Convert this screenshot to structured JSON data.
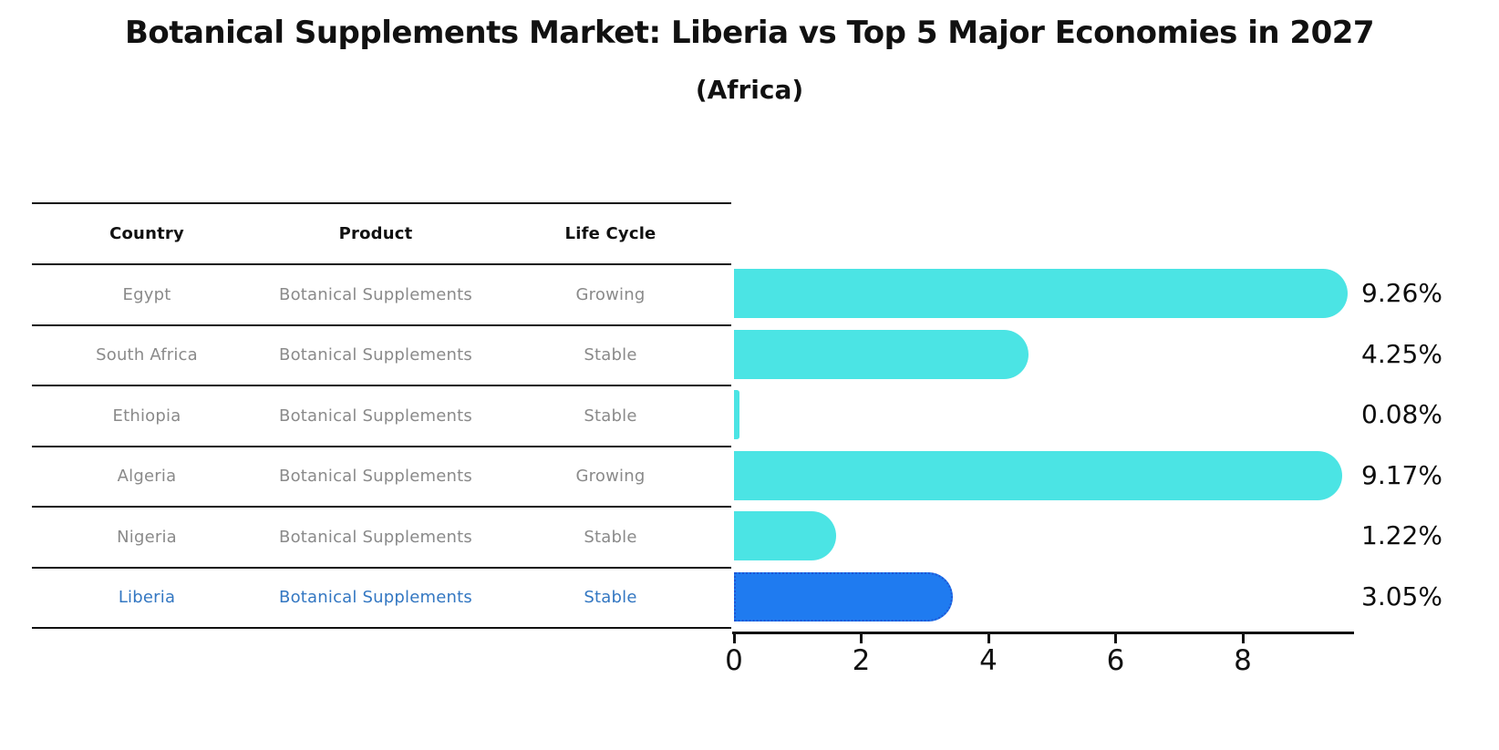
{
  "title": "Botanical Supplements Market: Liberia vs Top 5 Major Economies in 2027",
  "subtitle": "(Africa)",
  "table": {
    "columns": [
      "Country",
      "Product",
      "Life Cycle"
    ],
    "rows": [
      {
        "country": "Egypt",
        "product": "Botanical Supplements",
        "life_cycle": "Growing",
        "highlight": false
      },
      {
        "country": "South Africa",
        "product": "Botanical Supplements",
        "life_cycle": "Stable",
        "highlight": false
      },
      {
        "country": "Ethiopia",
        "product": "Botanical Supplements",
        "life_cycle": "Stable",
        "highlight": false
      },
      {
        "country": "Algeria",
        "product": "Botanical Supplements",
        "life_cycle": "Growing",
        "highlight": false
      },
      {
        "country": "Nigeria",
        "product": "Botanical Supplements",
        "life_cycle": "Stable",
        "highlight": false
      },
      {
        "country": "Liberia",
        "product": "Botanical Supplements",
        "life_cycle": "Stable",
        "highlight": true
      }
    ]
  },
  "chart_data": {
    "type": "bar",
    "orientation": "horizontal",
    "title": "Botanical Supplements Market: Liberia vs Top 5 Major Economies in 2027",
    "subtitle": "(Africa)",
    "categories": [
      "Egypt",
      "South Africa",
      "Ethiopia",
      "Algeria",
      "Nigeria",
      "Liberia"
    ],
    "values": [
      9.26,
      4.25,
      0.08,
      9.17,
      1.22,
      3.05
    ],
    "value_labels": [
      "9.26%",
      "4.25%",
      "0.08%",
      "9.17%",
      "1.22%",
      "3.05%"
    ],
    "x_ticks": [
      0,
      2,
      4,
      6,
      8
    ],
    "xlim": [
      0,
      9.75
    ],
    "xlabel": "",
    "ylabel": "",
    "grid": false,
    "legend": false,
    "bar_color_default": "#4be4e4",
    "bar_color_highlight": "#1f7bf0",
    "highlight_index": 5,
    "highlight_border_color": "#1e56d6",
    "highlight_text_color": "#3377c2"
  }
}
